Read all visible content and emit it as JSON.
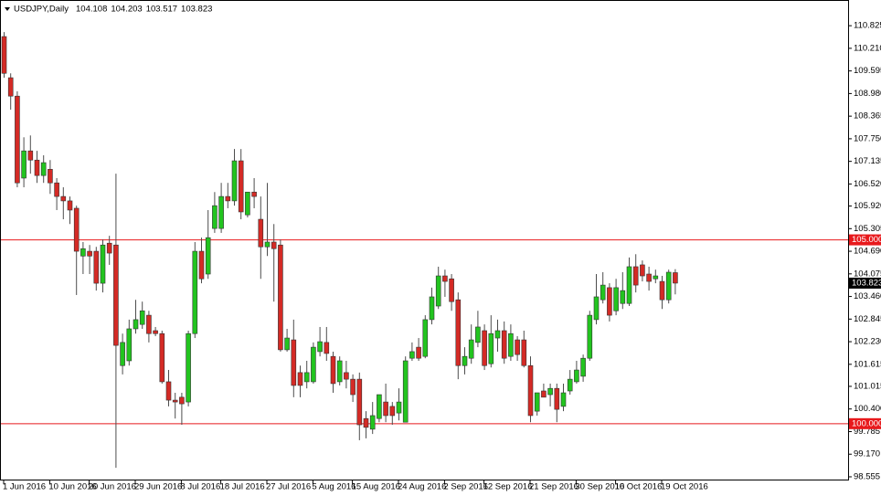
{
  "chart_data": {
    "type": "candlestick",
    "title": "USDJPY,Daily",
    "ohlc_header": [
      104.108,
      104.203,
      103.517,
      103.823
    ],
    "categories": [
      "1 Jun 2016",
      null,
      null,
      null,
      null,
      null,
      null,
      "10 Jun 2016",
      null,
      null,
      null,
      null,
      null,
      "20 Jun 2016",
      null,
      null,
      null,
      null,
      null,
      null,
      "29 Jun 2016",
      null,
      null,
      null,
      null,
      null,
      null,
      "8 Jul 2016",
      null,
      null,
      null,
      null,
      null,
      "18 Jul 2016",
      null,
      null,
      null,
      null,
      null,
      null,
      "27 Jul 2016",
      null,
      null,
      null,
      null,
      null,
      null,
      "5 Aug 2016",
      null,
      null,
      null,
      null,
      null,
      "15 Aug 2016",
      null,
      null,
      null,
      null,
      null,
      null,
      "24 Aug 2016",
      null,
      null,
      null,
      null,
      null,
      null,
      "2 Sep 2016",
      null,
      null,
      null,
      null,
      null,
      "12 Sep 2016",
      null,
      null,
      null,
      null,
      null,
      null,
      "21 Sep 2016",
      null,
      null,
      null,
      null,
      null,
      null,
      "30 Sep 2016",
      null,
      null,
      null,
      null,
      null,
      "10 Oct 2016",
      null,
      null,
      null,
      null,
      null,
      null,
      "19 Oct 2016",
      null,
      null
    ],
    "open": [
      110.53,
      109.41,
      108.91,
      106.68,
      107.42,
      107.17,
      106.75,
      106.92,
      106.55,
      106.18,
      106.06,
      105.86,
      104.56,
      104.69,
      104.69,
      103.82,
      104.91,
      104.86,
      101.58,
      101.71,
      102.58,
      102.7,
      102.95,
      102.53,
      102.45,
      101.14,
      100.64,
      100.72,
      100.59,
      102.45,
      104.69,
      104.07,
      105.31,
      105.31,
      106.18,
      106.06,
      107.15,
      105.68,
      106.3,
      105.56,
      104.81,
      104.94,
      104.86,
      102.01,
      102.28,
      101.39,
      101.14,
      101.14,
      101.96,
      102.21,
      101.83,
      101.14,
      101.39,
      101.21,
      101.21,
      100.14,
      99.85,
      100.14,
      100.59,
      100.47,
      100.29,
      100.04,
      101.78,
      102.08,
      101.83,
      102.83,
      103.2,
      104.02,
      103.94,
      103.37,
      101.58,
      101.78,
      102.21,
      102.53,
      101.63,
      102.33,
      102.53,
      101.83,
      102.28,
      102.28,
      101.58,
      100.34,
      100.89,
      100.79,
      100.96,
      100.47,
      100.89,
      101.14,
      101.29,
      101.78,
      102.83,
      103.37,
      103.7,
      103.07,
      103.27,
      103.27,
      104.27,
      104.32,
      104.07,
      103.94,
      103.87,
      103.37,
      104.108
    ],
    "high": [
      110.65,
      109.53,
      109.04,
      107.79,
      107.84,
      107.42,
      107.3,
      107.17,
      106.68,
      106.43,
      106.18,
      105.93,
      104.94,
      104.86,
      104.81,
      105.01,
      105.11,
      106.8,
      102.45,
      102.83,
      103.37,
      103.32,
      103.07,
      102.63,
      102.53,
      101.46,
      100.84,
      100.84,
      102.53,
      104.94,
      105.06,
      105.81,
      106.3,
      106.55,
      106.55,
      107.47,
      107.47,
      106.3,
      106.68,
      106.18,
      106.55,
      105.43,
      105.01,
      102.58,
      102.83,
      101.58,
      101.71,
      102.21,
      102.63,
      102.63,
      101.96,
      101.83,
      101.71,
      101.34,
      101.39,
      100.34,
      100.59,
      100.79,
      101.09,
      100.59,
      100.96,
      101.83,
      102.21,
      102.33,
      102.95,
      103.7,
      104.27,
      104.19,
      104.07,
      103.57,
      102.08,
      102.7,
      103.07,
      102.7,
      102.95,
      102.83,
      102.78,
      102.7,
      102.38,
      102.53,
      101.83,
      100.84,
      101.09,
      101.09,
      101.09,
      101.09,
      101.46,
      101.71,
      101.88,
      103.07,
      104.07,
      104.12,
      103.82,
      103.94,
      104.12,
      104.52,
      104.61,
      104.44,
      104.27,
      104.19,
      104.02,
      104.19,
      104.203
    ],
    "low": [
      109.41,
      108.54,
      106.43,
      106.43,
      106.8,
      106.55,
      106.55,
      106.25,
      105.81,
      105.56,
      105.43,
      103.5,
      104.07,
      104.07,
      103.62,
      103.57,
      104.32,
      98.8,
      101.34,
      101.58,
      102.45,
      102.58,
      102.21,
      102.38,
      101.09,
      100.47,
      100.14,
      99.97,
      100.47,
      102.33,
      103.82,
      103.94,
      105.19,
      105.19,
      105.86,
      105.93,
      105.56,
      105.61,
      105.86,
      103.94,
      104.56,
      103.32,
      101.96,
      101.96,
      100.72,
      100.72,
      100.96,
      101.09,
      101.83,
      101.71,
      100.84,
      101.04,
      100.96,
      100.59,
      99.55,
      99.6,
      99.72,
      100.04,
      100.04,
      99.97,
      100.09,
      100.04,
      101.71,
      101.71,
      101.78,
      102.7,
      103.12,
      103.45,
      103.07,
      101.21,
      101.34,
      101.63,
      102.08,
      101.46,
      101.53,
      101.96,
      101.63,
      101.71,
      101.71,
      101.53,
      100.04,
      100.22,
      100.72,
      100.47,
      100.04,
      100.34,
      100.79,
      101.09,
      101.14,
      101.71,
      102.7,
      103.27,
      102.78,
      102.95,
      103.12,
      103.2,
      103.57,
      103.87,
      103.62,
      103.82,
      103.12,
      103.27,
      103.517
    ],
    "close": [
      109.53,
      108.91,
      106.55,
      107.42,
      107.17,
      106.75,
      107.1,
      106.55,
      106.18,
      106.06,
      105.81,
      104.69,
      104.76,
      104.56,
      103.82,
      104.86,
      104.64,
      102.13,
      102.21,
      102.58,
      102.83,
      103.07,
      102.45,
      102.45,
      101.14,
      100.64,
      100.59,
      100.54,
      102.45,
      104.69,
      103.94,
      105.06,
      105.93,
      106.18,
      106.06,
      107.15,
      105.76,
      106.3,
      106.18,
      104.81,
      104.94,
      104.76,
      102.01,
      102.33,
      101.04,
      101.04,
      101.39,
      102.08,
      102.23,
      101.91,
      101.09,
      101.71,
      101.21,
      100.79,
      99.97,
      99.9,
      100.22,
      100.79,
      100.22,
      100.22,
      100.59,
      101.71,
      101.96,
      101.78,
      102.83,
      103.45,
      104.02,
      103.87,
      103.32,
      101.58,
      101.83,
      102.28,
      102.63,
      101.58,
      102.45,
      102.53,
      101.78,
      102.45,
      101.88,
      101.58,
      100.22,
      100.84,
      100.72,
      100.96,
      100.39,
      100.84,
      101.21,
      101.46,
      101.78,
      102.95,
      103.45,
      103.77,
      102.95,
      103.7,
      103.62,
      104.27,
      103.77,
      104.02,
      103.87,
      104.02,
      103.37,
      104.12,
      103.823
    ],
    "up_color": "#22c41f",
    "down_color": "#d42a25",
    "wick_color": "#4d4d4d",
    "ylim": [
      98.48,
      111.4
    ],
    "yticks": [
      110.825,
      {
        "value": 110.21,
        "label": "110.210"
      },
      109.595,
      {
        "value": 108.98,
        "label": "108.980"
      },
      108.365,
      {
        "value": 107.75,
        "label": "107.750"
      },
      107.135,
      {
        "value": 106.52,
        "label": "106.520"
      },
      {
        "value": 105.92,
        "label": "105.920"
      },
      105.305,
      {
        "value": 104.69,
        "label": "104.690"
      },
      104.075,
      {
        "value": 103.46,
        "label": "103.460"
      },
      102.845,
      {
        "value": 102.23,
        "label": "102.230"
      },
      101.615,
      101.015,
      {
        "value": 100.4,
        "label": "100.400"
      },
      99.785,
      {
        "value": 99.17,
        "label": "99.170"
      },
      98.555
    ],
    "hlines": [
      {
        "value": 105,
        "label": "105.000",
        "color": "#e8191c"
      },
      {
        "value": 100,
        "label": "100.000",
        "color": "#e8191c"
      }
    ],
    "last_price": 103.823
  }
}
